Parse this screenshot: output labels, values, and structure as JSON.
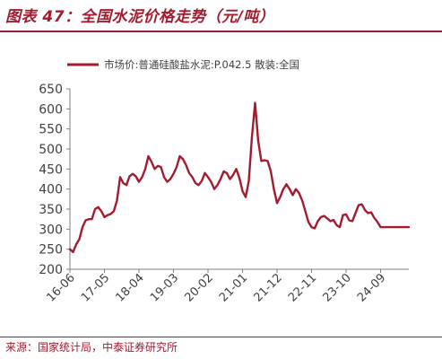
{
  "header": {
    "title": "图表 47：全国水泥价格走势（元/吨）"
  },
  "footer": {
    "source": "来源：国家统计局，中泰证券研究所"
  },
  "chart_data": {
    "type": "line",
    "title": "",
    "xlabel": "",
    "ylabel": "",
    "ylim": [
      200,
      650
    ],
    "yticks": [
      200,
      250,
      300,
      350,
      400,
      450,
      500,
      550,
      600,
      650
    ],
    "xticks": [
      "16-06",
      "17-05",
      "18-04",
      "19-03",
      "20-02",
      "21-01",
      "21-12",
      "22-11",
      "23-10",
      "24-09"
    ],
    "legend": {
      "position": "top",
      "label": "市场价:普通硅酸盐水泥:P.042.5 散装:全国"
    },
    "grid": false,
    "colors": {
      "line": "#a31b2e",
      "axis": "#7f7f7f",
      "text": "#404040"
    },
    "series": [
      {
        "name": "市场价:普通硅酸盐水泥:P.042.5 散装:全国",
        "x": [
          "16-06",
          "16-07",
          "16-08",
          "16-09",
          "16-10",
          "16-11",
          "16-12",
          "17-01",
          "17-02",
          "17-03",
          "17-04",
          "17-05",
          "17-06",
          "17-07",
          "17-08",
          "17-09",
          "17-10",
          "17-11",
          "17-12",
          "18-01",
          "18-02",
          "18-03",
          "18-04",
          "18-05",
          "18-06",
          "18-07",
          "18-08",
          "18-09",
          "18-10",
          "18-11",
          "18-12",
          "19-01",
          "19-02",
          "19-03",
          "19-04",
          "19-05",
          "19-06",
          "19-07",
          "19-08",
          "19-09",
          "19-10",
          "19-11",
          "19-12",
          "20-01",
          "20-02",
          "20-03",
          "20-04",
          "20-05",
          "20-06",
          "20-07",
          "20-08",
          "20-09",
          "20-10",
          "20-11",
          "20-12",
          "21-01",
          "21-02",
          "21-03",
          "21-04",
          "21-05",
          "21-06",
          "21-07",
          "21-08",
          "21-09",
          "21-10",
          "21-11",
          "21-12",
          "22-01",
          "22-02",
          "22-03",
          "22-04",
          "22-05",
          "22-06",
          "22-07",
          "22-08",
          "22-09",
          "22-10",
          "22-11",
          "22-12",
          "23-01",
          "23-02",
          "23-03",
          "23-04",
          "23-05",
          "23-06",
          "23-07",
          "23-08",
          "23-09",
          "23-10",
          "23-11",
          "23-12",
          "24-01",
          "24-02",
          "24-03",
          "24-04",
          "24-05",
          "24-06",
          "24-07",
          "24-08",
          "24-09",
          "24-10",
          "24-11",
          "24-12",
          "25-01",
          "25-02",
          "25-03",
          "25-04",
          "25-05",
          "25-06"
        ],
        "values": [
          250,
          243,
          262,
          275,
          305,
          322,
          325,
          325,
          350,
          355,
          345,
          330,
          335,
          338,
          345,
          372,
          430,
          415,
          410,
          432,
          438,
          432,
          418,
          430,
          450,
          482,
          468,
          450,
          458,
          455,
          430,
          418,
          425,
          438,
          455,
          482,
          475,
          460,
          440,
          430,
          415,
          410,
          420,
          440,
          430,
          418,
          400,
          410,
          425,
          444,
          440,
          425,
          435,
          450,
          428,
          395,
          380,
          420,
          530,
          615,
          520,
          470,
          472,
          470,
          445,
          400,
          365,
          380,
          400,
          412,
          400,
          385,
          400,
          390,
          372,
          345,
          318,
          305,
          302,
          320,
          330,
          333,
          327,
          320,
          323,
          310,
          305,
          335,
          337,
          322,
          320,
          340,
          360,
          362,
          348,
          340,
          342,
          328,
          318,
          305,
          305,
          305,
          305,
          305,
          305,
          305,
          305,
          305,
          305
        ]
      }
    ]
  }
}
